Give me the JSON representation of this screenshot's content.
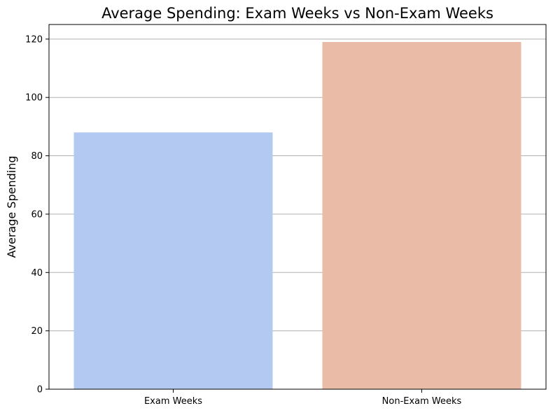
{
  "chart_data": {
    "type": "bar",
    "title": "Average Spending: Exam Weeks vs Non-Exam Weeks",
    "xlabel": "",
    "ylabel": "Average Spending",
    "categories": [
      "Exam Weeks",
      "Non-Exam Weeks"
    ],
    "values": [
      88,
      119
    ],
    "colors": [
      "#b4c9f2",
      "#eabba6"
    ],
    "ylim": [
      0,
      125
    ],
    "yticks": [
      0,
      20,
      40,
      60,
      80,
      100,
      120
    ],
    "grid": "horizontal",
    "legend": "none"
  }
}
